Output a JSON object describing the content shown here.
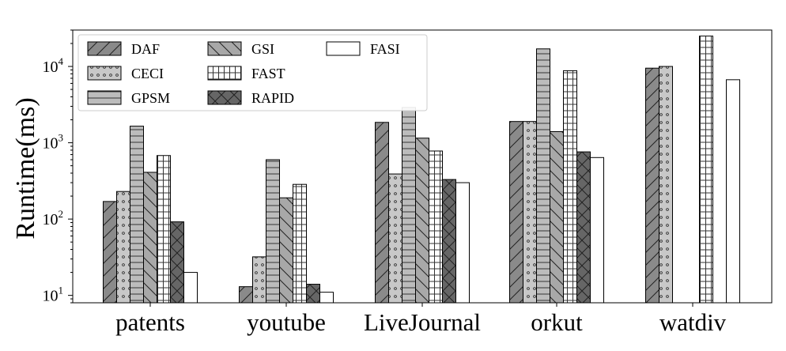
{
  "chart_data": {
    "type": "bar",
    "title": "",
    "xlabel": "",
    "ylabel": "Runtime(ms)",
    "yscale": "log",
    "ylim": [
      8,
      30000
    ],
    "grid": false,
    "legend_position": "top-left",
    "legend_columns": 3,
    "categories": [
      "patents",
      "youtube",
      "LiveJournal",
      "orkut",
      "watdiv"
    ],
    "ytick_labels": [
      {
        "value": 10,
        "base": "10",
        "exp": "1"
      },
      {
        "value": 100,
        "base": "10",
        "exp": "2"
      },
      {
        "value": 1000,
        "base": "10",
        "exp": "3"
      },
      {
        "value": 10000,
        "base": "10",
        "exp": "4"
      }
    ],
    "series": [
      {
        "name": "DAF",
        "fill": "#8a8a8a",
        "pattern": "slash",
        "values": [
          170,
          13,
          1850,
          1900,
          9500
        ]
      },
      {
        "name": "CECI",
        "fill": "#c8c8c8",
        "pattern": "dots",
        "values": [
          230,
          32,
          390,
          1900,
          10000
        ]
      },
      {
        "name": "GPSM",
        "fill": "#bcbcbc",
        "pattern": "hlines",
        "values": [
          1650,
          600,
          2900,
          17000,
          null
        ]
      },
      {
        "name": "GSI",
        "fill": "#a8a8a8",
        "pattern": "backslash",
        "values": [
          410,
          190,
          1150,
          1400,
          null
        ]
      },
      {
        "name": "FAST",
        "fill": "#ffffff",
        "pattern": "grid",
        "values": [
          680,
          285,
          780,
          8800,
          25000
        ]
      },
      {
        "name": "RAPID",
        "fill": "#666666",
        "pattern": "cross",
        "values": [
          92,
          14,
          330,
          760,
          null
        ]
      },
      {
        "name": "FASI",
        "fill": "#ffffff",
        "pattern": "none",
        "values": [
          20,
          11,
          300,
          640,
          6700
        ]
      }
    ]
  }
}
